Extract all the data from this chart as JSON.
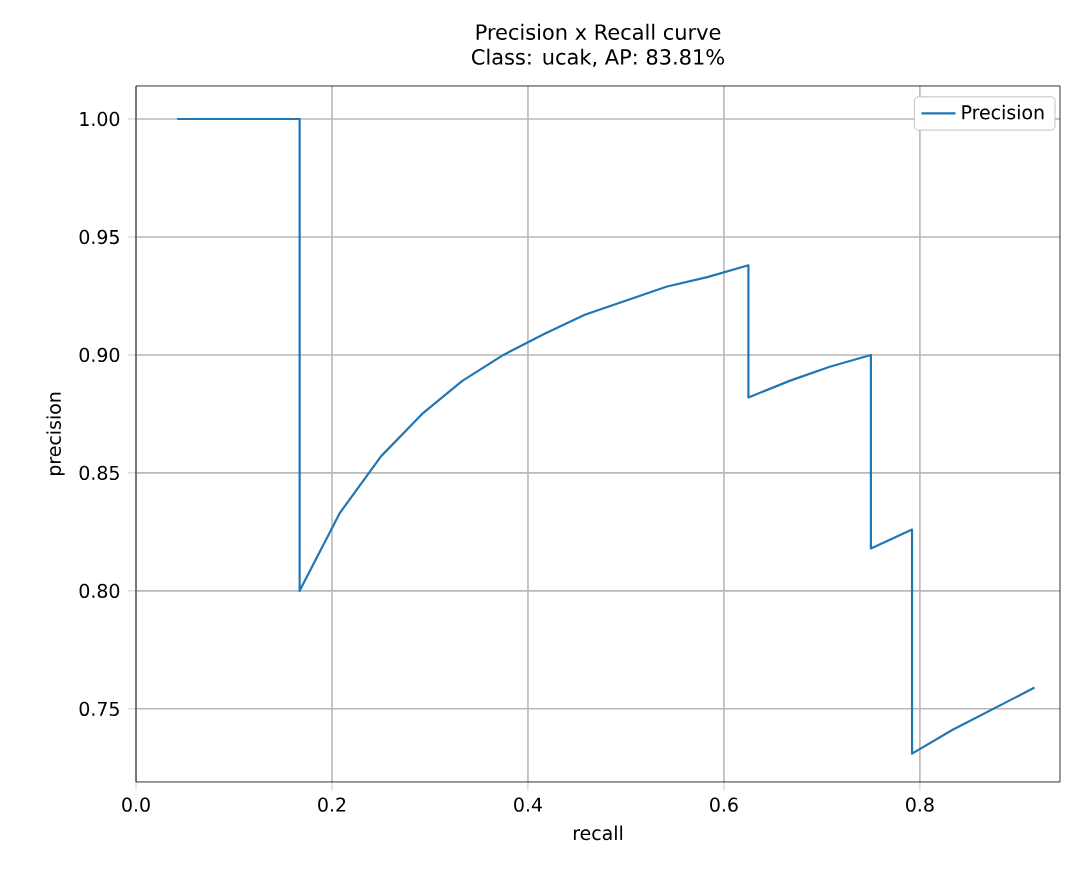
{
  "chart_data": {
    "type": "line",
    "title": "Precision x Recall curve",
    "subtitle": "Class: ucak, AP: 83.81%",
    "xlabel": "recall",
    "ylabel": "precision",
    "series": [
      {
        "name": "Precision",
        "color": "#1f77b4",
        "x": [
          0.042,
          0.083,
          0.125,
          0.167,
          0.167,
          0.208,
          0.25,
          0.292,
          0.333,
          0.375,
          0.417,
          0.458,
          0.5,
          0.542,
          0.583,
          0.625,
          0.625,
          0.667,
          0.708,
          0.75,
          0.75,
          0.792,
          0.792,
          0.833,
          0.875,
          0.917
        ],
        "values": [
          1.0,
          1.0,
          1.0,
          1.0,
          0.8,
          0.833,
          0.857,
          0.875,
          0.889,
          0.9,
          0.909,
          0.917,
          0.923,
          0.929,
          0.933,
          0.938,
          0.882,
          0.889,
          0.895,
          0.9,
          0.818,
          0.826,
          0.731,
          0.741,
          0.75,
          0.759
        ]
      }
    ],
    "xlim": [
      0,
      0.943
    ],
    "ylim": [
      0.719,
      1.014
    ],
    "xticks": [
      {
        "value": 0,
        "label": "0.0"
      },
      0.2,
      0.4,
      0.6,
      0.8
    ],
    "yticks": [
      0.75,
      {
        "value": 0.8,
        "label": "0.80"
      },
      0.85,
      {
        "value": 0.9,
        "label": "0.90"
      },
      0.95,
      {
        "value": 1,
        "label": "1.00"
      }
    ],
    "grid": true,
    "legend": "top right",
    "line_style": "solid",
    "marker": "none"
  }
}
